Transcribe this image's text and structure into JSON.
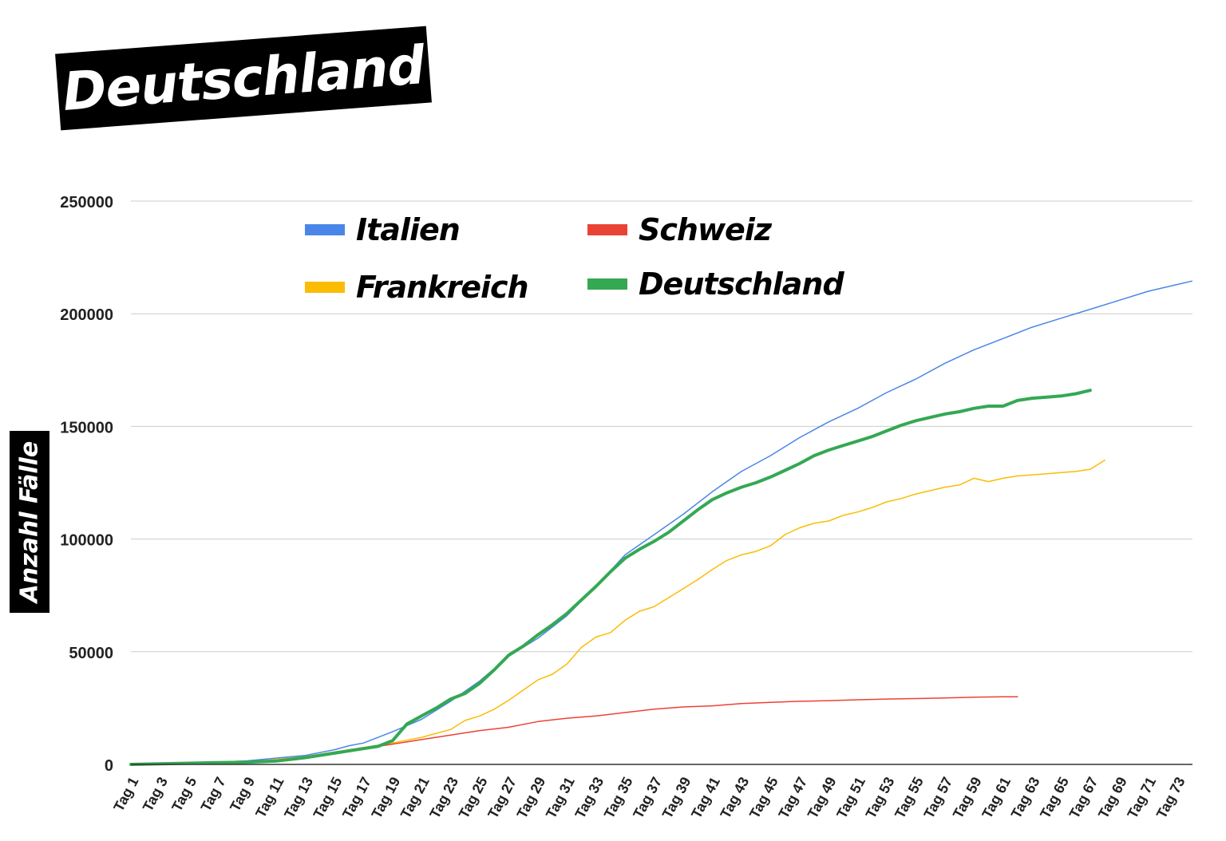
{
  "title": "Deutschland",
  "chart_data": {
    "type": "line",
    "title": "Deutschland",
    "xlabel": "",
    "ylabel": "Anzahl Fälle",
    "ylim": [
      0,
      250000
    ],
    "yticks": [
      0,
      50000,
      100000,
      150000,
      200000,
      250000
    ],
    "x_start": 1,
    "x_count": 74,
    "x_tick_labels": [
      "Tag 1",
      "Tag 3",
      "Tag 5",
      "Tag 7",
      "Tag 9",
      "Tag 11",
      "Tag 13",
      "Tag 15",
      "Tag 17",
      "Tag 19",
      "Tag 21",
      "Tag 23",
      "Tag 25",
      "Tag 27",
      "Tag 29",
      "Tag 31",
      "Tag 33",
      "Tag 35",
      "Tag 37",
      "Tag 39",
      "Tag 41",
      "Tag 43",
      "Tag 45",
      "Tag 47",
      "Tag 49",
      "Tag 51",
      "Tag 53",
      "Tag 55",
      "Tag 57",
      "Tag 59",
      "Tag 61",
      "Tag 63",
      "Tag 65",
      "Tag 67",
      "Tag 69",
      "Tag 71",
      "Tag 73"
    ],
    "grid": true,
    "legend_position": "top-left",
    "series": [
      {
        "name": "Italien",
        "color": "#4a86e8",
        "points": [
          [
            1,
            0
          ],
          [
            5,
            400
          ],
          [
            9,
            1600
          ],
          [
            13,
            4000
          ],
          [
            15,
            6500
          ],
          [
            16,
            8300
          ],
          [
            17,
            9500
          ],
          [
            19,
            14500
          ],
          [
            21,
            20000
          ],
          [
            23,
            28000
          ],
          [
            25,
            37000
          ],
          [
            27,
            48000
          ],
          [
            29,
            56000
          ],
          [
            31,
            66000
          ],
          [
            33,
            79000
          ],
          [
            35,
            93000
          ],
          [
            37,
            102000
          ],
          [
            39,
            111000
          ],
          [
            41,
            121000
          ],
          [
            43,
            130000
          ],
          [
            45,
            137000
          ],
          [
            47,
            145000
          ],
          [
            49,
            152000
          ],
          [
            51,
            158000
          ],
          [
            53,
            165000
          ],
          [
            55,
            171000
          ],
          [
            57,
            178000
          ],
          [
            59,
            184000
          ],
          [
            61,
            189000
          ],
          [
            63,
            194000
          ],
          [
            65,
            198000
          ],
          [
            67,
            202000
          ],
          [
            69,
            206000
          ],
          [
            71,
            210000
          ],
          [
            73,
            213000
          ],
          [
            74,
            214500
          ]
        ]
      },
      {
        "name": "Schweiz",
        "color": "#ea4335",
        "points": [
          [
            1,
            0
          ],
          [
            9,
            600
          ],
          [
            13,
            3000
          ],
          [
            17,
            7000
          ],
          [
            19,
            9000
          ],
          [
            21,
            11000
          ],
          [
            23,
            13000
          ],
          [
            25,
            15000
          ],
          [
            27,
            16500
          ],
          [
            29,
            19000
          ],
          [
            31,
            20500
          ],
          [
            33,
            21500
          ],
          [
            35,
            23000
          ],
          [
            37,
            24500
          ],
          [
            39,
            25500
          ],
          [
            41,
            26000
          ],
          [
            43,
            27000
          ],
          [
            45,
            27500
          ],
          [
            47,
            28000
          ],
          [
            49,
            28300
          ],
          [
            51,
            28700
          ],
          [
            53,
            29000
          ],
          [
            55,
            29200
          ],
          [
            57,
            29500
          ],
          [
            59,
            29800
          ],
          [
            61,
            30000
          ],
          [
            62,
            30000
          ]
        ]
      },
      {
        "name": "Frankreich",
        "color": "#fbbc04",
        "points": [
          [
            1,
            0
          ],
          [
            9,
            1000
          ],
          [
            13,
            3500
          ],
          [
            17,
            7500
          ],
          [
            19,
            9500
          ],
          [
            21,
            12000
          ],
          [
            23,
            15500
          ],
          [
            24,
            19500
          ],
          [
            25,
            21500
          ],
          [
            26,
            24500
          ],
          [
            27,
            28500
          ],
          [
            28,
            33000
          ],
          [
            29,
            37500
          ],
          [
            30,
            40000
          ],
          [
            31,
            44500
          ],
          [
            32,
            52000
          ],
          [
            33,
            56500
          ],
          [
            34,
            58500
          ],
          [
            35,
            64000
          ],
          [
            36,
            68000
          ],
          [
            37,
            70000
          ],
          [
            38,
            74000
          ],
          [
            39,
            78000
          ],
          [
            40,
            82000
          ],
          [
            41,
            86500
          ],
          [
            42,
            90500
          ],
          [
            43,
            93000
          ],
          [
            44,
            94500
          ],
          [
            45,
            97000
          ],
          [
            46,
            102000
          ],
          [
            47,
            105000
          ],
          [
            48,
            107000
          ],
          [
            49,
            108000
          ],
          [
            50,
            110500
          ],
          [
            51,
            112000
          ],
          [
            52,
            114000
          ],
          [
            53,
            116500
          ],
          [
            54,
            118000
          ],
          [
            55,
            120000
          ],
          [
            56,
            121500
          ],
          [
            57,
            123000
          ],
          [
            58,
            124000
          ],
          [
            59,
            127000
          ],
          [
            60,
            125500
          ],
          [
            61,
            127000
          ],
          [
            62,
            128000
          ],
          [
            63,
            128500
          ],
          [
            64,
            129000
          ],
          [
            65,
            129500
          ],
          [
            66,
            130000
          ],
          [
            67,
            131000
          ],
          [
            68,
            135000
          ]
        ]
      },
      {
        "name": "Deutschland",
        "color": "#34a853",
        "points": [
          [
            1,
            0
          ],
          [
            7,
            800
          ],
          [
            9,
            1000
          ],
          [
            11,
            1500
          ],
          [
            13,
            3000
          ],
          [
            15,
            5000
          ],
          [
            17,
            7000
          ],
          [
            18,
            8000
          ],
          [
            19,
            10500
          ],
          [
            20,
            18000
          ],
          [
            21,
            21500
          ],
          [
            22,
            25000
          ],
          [
            23,
            29000
          ],
          [
            24,
            31500
          ],
          [
            25,
            36000
          ],
          [
            26,
            42000
          ],
          [
            27,
            48500
          ],
          [
            28,
            52500
          ],
          [
            29,
            57500
          ],
          [
            30,
            62000
          ],
          [
            31,
            67000
          ],
          [
            32,
            73000
          ],
          [
            33,
            79000
          ],
          [
            34,
            85500
          ],
          [
            35,
            91500
          ],
          [
            36,
            95500
          ],
          [
            37,
            99000
          ],
          [
            38,
            103000
          ],
          [
            39,
            108000
          ],
          [
            40,
            113000
          ],
          [
            41,
            117500
          ],
          [
            42,
            120500
          ],
          [
            43,
            123000
          ],
          [
            44,
            125000
          ],
          [
            45,
            127500
          ],
          [
            46,
            130500
          ],
          [
            47,
            133500
          ],
          [
            48,
            137000
          ],
          [
            49,
            139500
          ],
          [
            50,
            141500
          ],
          [
            51,
            143500
          ],
          [
            52,
            145500
          ],
          [
            53,
            148000
          ],
          [
            54,
            150500
          ],
          [
            55,
            152500
          ],
          [
            56,
            154000
          ],
          [
            57,
            155500
          ],
          [
            58,
            156500
          ],
          [
            59,
            158000
          ],
          [
            60,
            159000
          ],
          [
            61,
            159000
          ],
          [
            62,
            161500
          ],
          [
            63,
            162500
          ],
          [
            64,
            163000
          ],
          [
            65,
            163500
          ],
          [
            66,
            164500
          ],
          [
            67,
            166000
          ]
        ]
      }
    ]
  }
}
